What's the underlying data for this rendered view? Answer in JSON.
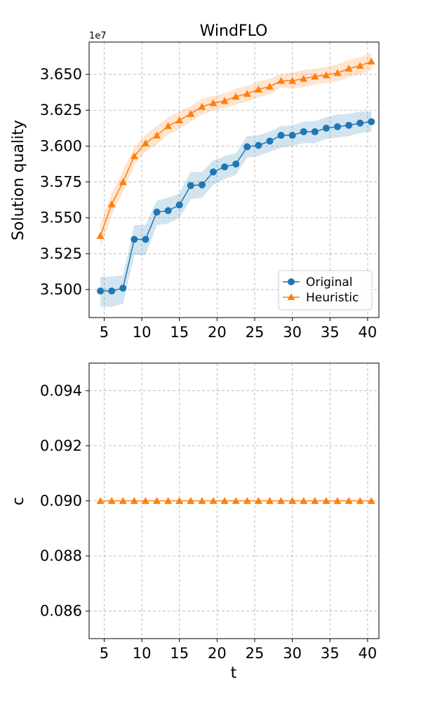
{
  "chart_data": [
    {
      "type": "line",
      "title": "WindFLO",
      "xlabel": "",
      "ylabel": "Solution quality",
      "y_offset_label": "1e7",
      "xlim": [
        3,
        41.5
      ],
      "ylim": [
        34.805,
        36.725
      ],
      "x_ticks": [
        5,
        10,
        15,
        20,
        25,
        30,
        35,
        40
      ],
      "y_ticks": [
        35.0,
        35.25,
        35.5,
        35.75,
        36.0,
        36.25,
        36.5
      ],
      "y_tick_labels": [
        "3.500",
        "3.525",
        "3.550",
        "3.575",
        "3.600",
        "3.625",
        "3.650"
      ],
      "grid": true,
      "legend": "lower-right",
      "x": [
        4.5,
        6.0,
        7.5,
        9.0,
        10.5,
        12.0,
        13.5,
        15.0,
        16.5,
        18.0,
        19.5,
        21.0,
        22.5,
        24.0,
        25.5,
        27.0,
        28.5,
        30.0,
        31.5,
        33.0,
        34.5,
        36.0,
        37.5,
        39.0,
        40.5
      ],
      "series": [
        {
          "name": "Original",
          "color": "#1f77b4",
          "marker": "circle",
          "values": [
            34.99,
            34.99,
            35.01,
            35.35,
            35.35,
            35.54,
            35.55,
            35.59,
            35.725,
            35.73,
            35.82,
            35.855,
            35.875,
            35.995,
            36.005,
            36.035,
            36.075,
            36.075,
            36.1,
            36.1,
            36.125,
            36.135,
            36.145,
            36.16,
            36.17
          ],
          "band_upper": [
            35.09,
            35.09,
            35.1,
            35.45,
            35.45,
            35.62,
            35.64,
            35.67,
            35.82,
            35.82,
            35.9,
            35.93,
            35.95,
            36.07,
            36.075,
            36.1,
            36.14,
            36.145,
            36.17,
            36.175,
            36.2,
            36.22,
            36.225,
            36.24,
            36.24
          ],
          "band_lower": [
            34.88,
            34.88,
            34.9,
            35.24,
            35.24,
            35.45,
            35.46,
            35.5,
            35.63,
            35.64,
            35.73,
            35.77,
            35.8,
            35.92,
            35.93,
            35.96,
            35.99,
            36.0,
            36.02,
            36.02,
            36.05,
            36.06,
            36.07,
            36.09,
            36.1
          ]
        },
        {
          "name": "Heuristic",
          "color": "#ff7f0e",
          "marker": "triangle",
          "values": [
            35.375,
            35.595,
            35.75,
            35.93,
            36.02,
            36.075,
            36.14,
            36.18,
            36.225,
            36.275,
            36.3,
            36.315,
            36.345,
            36.365,
            36.395,
            36.415,
            36.455,
            36.455,
            36.47,
            36.485,
            36.495,
            36.51,
            36.54,
            36.56,
            36.59
          ],
          "band_upper": [
            35.46,
            35.67,
            35.83,
            35.99,
            36.08,
            36.14,
            36.2,
            36.24,
            36.28,
            36.33,
            36.35,
            36.37,
            36.4,
            36.42,
            36.45,
            36.47,
            36.5,
            36.51,
            36.53,
            36.54,
            36.55,
            36.57,
            36.6,
            36.62,
            36.65
          ],
          "band_lower": [
            35.29,
            35.52,
            35.68,
            35.87,
            35.96,
            36.01,
            36.08,
            36.12,
            36.17,
            36.22,
            36.25,
            36.26,
            36.29,
            36.31,
            36.34,
            36.36,
            36.41,
            36.4,
            36.41,
            36.43,
            36.44,
            36.45,
            36.48,
            36.5,
            36.53
          ]
        }
      ]
    },
    {
      "type": "line",
      "title": "",
      "xlabel": "t",
      "ylabel": "c",
      "xlim": [
        3,
        41.5
      ],
      "ylim": [
        0.085,
        0.095
      ],
      "x_ticks": [
        5,
        10,
        15,
        20,
        25,
        30,
        35,
        40
      ],
      "y_ticks": [
        0.086,
        0.088,
        0.09,
        0.092,
        0.094
      ],
      "y_tick_labels": [
        "0.086",
        "0.088",
        "0.090",
        "0.092",
        "0.094"
      ],
      "grid": true,
      "x": [
        4.5,
        6.0,
        7.5,
        9.0,
        10.5,
        12.0,
        13.5,
        15.0,
        16.5,
        18.0,
        19.5,
        21.0,
        22.5,
        24.0,
        25.5,
        27.0,
        28.5,
        30.0,
        31.5,
        33.0,
        34.5,
        36.0,
        37.5,
        39.0,
        40.5
      ],
      "series": [
        {
          "color": "#ff7f0e",
          "marker": "triangle",
          "values": [
            0.09,
            0.09,
            0.09,
            0.09,
            0.09,
            0.09,
            0.09,
            0.09,
            0.09,
            0.09,
            0.09,
            0.09,
            0.09,
            0.09,
            0.09,
            0.09,
            0.09,
            0.09,
            0.09,
            0.09,
            0.09,
            0.09,
            0.09,
            0.09,
            0.09
          ]
        }
      ]
    }
  ]
}
